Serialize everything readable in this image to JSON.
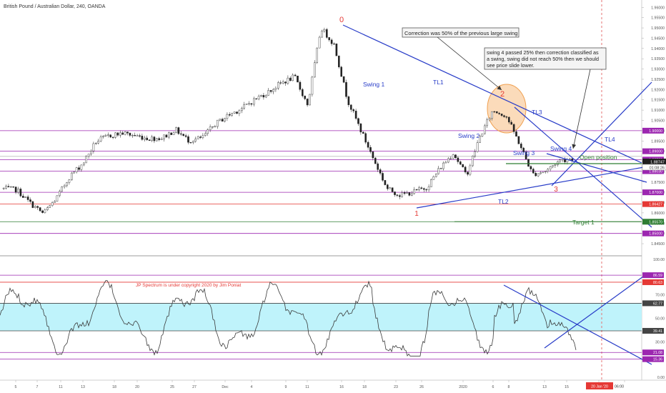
{
  "header": {
    "symbol_title": "British Pound / Australian Dollar, 240, OANDA"
  },
  "price_axis": {
    "ticks": [
      "1.96000",
      "1.95500",
      "1.95000",
      "1.94500",
      "1.94000",
      "1.93500",
      "1.93000",
      "1.92500",
      "1.92000",
      "1.91500",
      "1.91000",
      "1.90500",
      "1.90000",
      "1.89500",
      "1.89000",
      "1.88500",
      "1.88000",
      "1.87500",
      "1.87000",
      "1.86500",
      "1.86000",
      "1.85500",
      "1.85000",
      "1.84500"
    ],
    "current_price": "1.88747",
    "countdown": "01:08:26",
    "price_range": [
      1.8405,
      1.9615
    ]
  },
  "x_axis": {
    "ticks": [
      "5",
      "7",
      "11",
      "13",
      "18",
      "20",
      "25",
      "27",
      "Dec",
      "4",
      "9",
      "11",
      "16",
      "18",
      "23",
      "26",
      "2020",
      "6",
      "8",
      "13",
      "15",
      "20",
      "22"
    ],
    "highlight_label": "20 Jan '20",
    "highlight_time": "06:00"
  },
  "levels": [
    {
      "label": "1.90000",
      "price": 1.9,
      "color": "#9c27b0"
    },
    {
      "label": "1.89000",
      "price": 1.89,
      "color": "#9c27b0"
    },
    {
      "label": "1.88593",
      "price": 1.88593,
      "color": "#9c27b0"
    },
    {
      "label": "1.88030",
      "price": 1.8803,
      "color": "#9c27b0"
    },
    {
      "label": "1.87000",
      "price": 1.87,
      "color": "#9c27b0"
    },
    {
      "label": "1.86427",
      "price": 1.86427,
      "color": "#e53935"
    },
    {
      "label": "1.85570",
      "price": 1.8557,
      "color": "#2e7d32"
    },
    {
      "label": "1.85000",
      "price": 1.85,
      "color": "#9c27b0"
    }
  ],
  "annotations": {
    "wave_labels": [
      "0",
      "1",
      "2",
      "3"
    ],
    "swing_labels": [
      "Swing 1",
      "Swing 2",
      "Swing 3",
      "Swing 4"
    ],
    "trendline_labels": [
      "TL1",
      "TL2",
      "TL3",
      "TL4"
    ],
    "open_position": "Open position",
    "target": "Target 1",
    "callout_correction": "Correction was 50% of the previous large swing",
    "callout_swing4": [
      "swing 4 passed 25% then correction classified as",
      "a swing, swing did not reach 50% then we should",
      "see price slide lower."
    ]
  },
  "indicator": {
    "copyright": "JP Spectrum is under copyright 2020 by Jim Poniat",
    "ticks": [
      "100.00",
      "70.00",
      "50.00",
      "30.00",
      "0.00"
    ],
    "levels": [
      {
        "label": "86.59",
        "value": 86.59,
        "color": "#9c27b0"
      },
      {
        "label": "80.63",
        "value": 80.63,
        "color": "#e53935"
      },
      {
        "label": "62.77",
        "value": 62.77,
        "color": "#444444"
      },
      {
        "label": "39.41",
        "value": 39.41,
        "color": "#444444"
      },
      {
        "label": "21.08",
        "value": 21.08,
        "color": "#9c27b0"
      },
      {
        "label": "15.36",
        "value": 15.36,
        "color": "#9c27b0"
      }
    ],
    "band": [
      39.41,
      62.77
    ],
    "value_range": [
      0,
      100
    ]
  },
  "colors": {
    "accent_blue": "#283cc8",
    "level_purple": "#9c27b0",
    "level_red": "#e53935",
    "target_green": "#2e7d32",
    "band_cyan": "#bff3fb",
    "wave_red": "#e53935",
    "highlight_orange": "#f5a04a"
  },
  "chart_data": {
    "type": "candlestick",
    "title": "British Pound / Australian Dollar, 240, OANDA",
    "ylim": [
      1.8405,
      1.9615
    ],
    "x": [
      "5",
      "7",
      "11",
      "13",
      "18",
      "20",
      "25",
      "27",
      "Dec",
      "4",
      "9",
      "11",
      "16",
      "18",
      "23",
      "26",
      "2020",
      "6",
      "8",
      "13",
      "15",
      "20",
      "22"
    ],
    "series": [
      {
        "name": "GBPAUD",
        "close_path": [
          1.8718,
          1.8712,
          1.8648,
          1.8596,
          1.8672,
          1.8778,
          1.8842,
          1.8948,
          1.8976,
          1.8988,
          1.8975,
          1.8962,
          1.8965,
          1.9005,
          1.8952,
          1.8964,
          1.9032,
          1.9076,
          1.9108,
          1.9152,
          1.9188,
          1.9232,
          1.9262,
          1.9124,
          1.9502,
          1.9418,
          1.9152,
          1.9004,
          1.8858,
          1.8718,
          1.8686,
          1.8702,
          1.8724,
          1.8818,
          1.8892,
          1.8782,
          1.8968,
          1.9098,
          1.9074,
          1.8938,
          1.8788,
          1.8804,
          1.8854,
          1.8866
        ]
      }
    ]
  }
}
